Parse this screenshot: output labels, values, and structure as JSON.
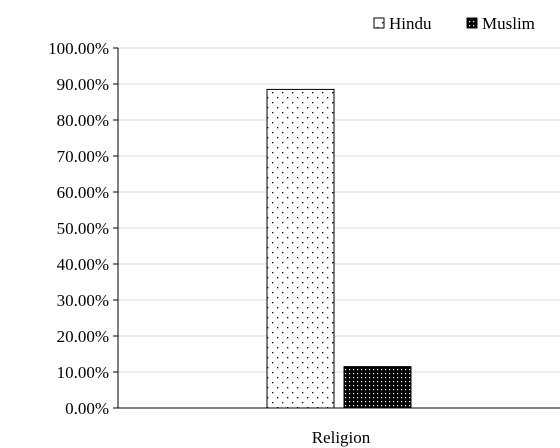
{
  "chart_data": {
    "type": "bar",
    "categories": [
      "Religion"
    ],
    "series": [
      {
        "name": "Hindu",
        "values": [
          0.885
        ]
      },
      {
        "name": "Muslim",
        "values": [
          0.115
        ]
      }
    ],
    "title": "",
    "xlabel": "Religion",
    "ylabel": "",
    "ylim": [
      0,
      1
    ],
    "yticks": [
      0,
      0.1,
      0.2,
      0.3,
      0.4,
      0.5,
      0.6,
      0.7,
      0.8,
      0.9,
      1.0
    ],
    "ytick_labels": [
      "0.00%",
      "10.00%",
      "20.00%",
      "30.00%",
      "40.00%",
      "50.00%",
      "60.00%",
      "70.00%",
      "80.00%",
      "90.00%",
      "100.00%"
    ],
    "legend": "top-right",
    "grid": true,
    "colors": {
      "axis": "#000000",
      "grid": "#d9d9d9",
      "hindu_fill": "#ffffff",
      "muslim_fill": "#000000"
    },
    "patterns": {
      "Hindu": "sparse-dots",
      "Muslim": "dense-dots"
    }
  }
}
